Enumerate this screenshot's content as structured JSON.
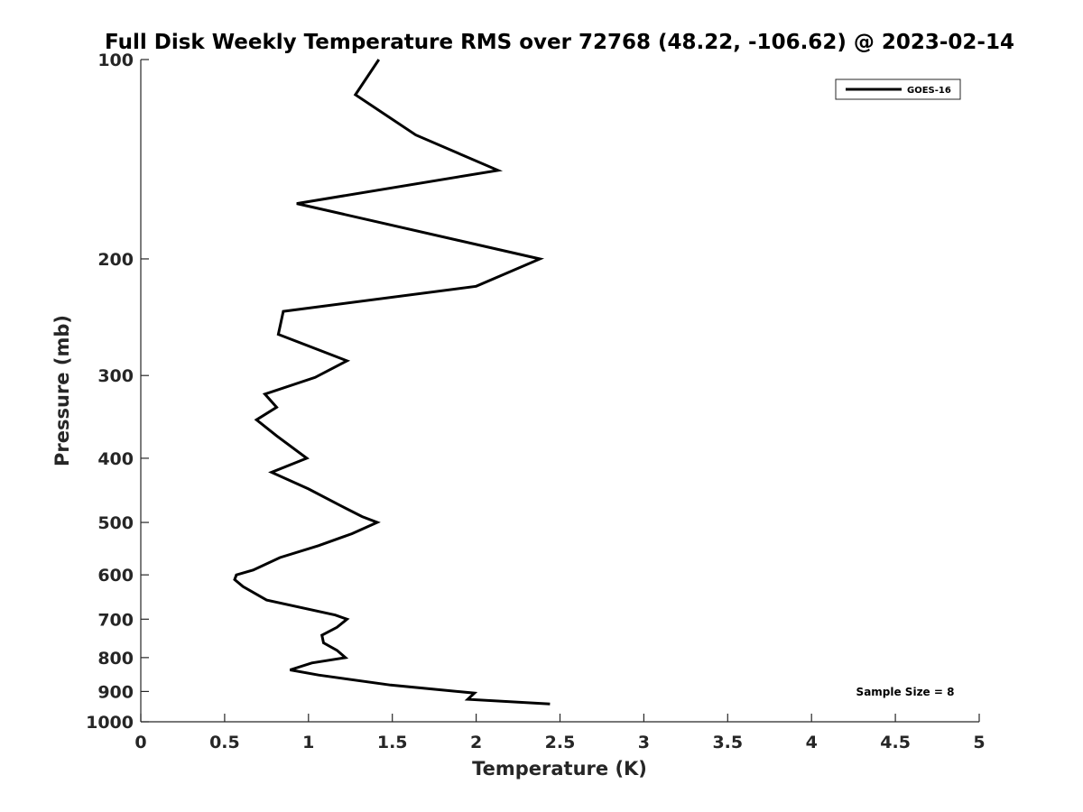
{
  "chart_data": {
    "type": "line",
    "title": "Full Disk Weekly Temperature RMS over 72768 (48.22, -106.62) @ 2023-02-14",
    "xlabel": "Temperature (K)",
    "ylabel": "Pressure (mb)",
    "xlim": [
      0,
      5
    ],
    "ylim": [
      100,
      1000
    ],
    "yscale": "log",
    "yreversed": true,
    "xticks": [
      0,
      0.5,
      1,
      1.5,
      2,
      2.5,
      3,
      3.5,
      4,
      4.5,
      5
    ],
    "xtick_labels": [
      "0",
      "0.5",
      "1",
      "1.5",
      "2",
      "2.5",
      "3",
      "3.5",
      "4",
      "4.5",
      "5"
    ],
    "yticks": [
      100,
      200,
      300,
      400,
      500,
      600,
      700,
      800,
      900,
      1000
    ],
    "ytick_labels": [
      "100",
      "200",
      "300",
      "400",
      "500",
      "600",
      "700",
      "800",
      "900",
      "1000"
    ],
    "grid": false,
    "legend_position": "top-right",
    "series": [
      {
        "name": "GOES-16",
        "color": "#000000",
        "x": [
          1.42,
          1.28,
          1.64,
          2.13,
          0.93,
          2.38,
          2.0,
          0.85,
          0.82,
          1.23,
          1.04,
          0.74,
          0.81,
          0.69,
          0.81,
          0.99,
          0.78,
          1.0,
          1.18,
          1.32,
          1.41,
          1.26,
          1.06,
          0.83,
          0.67,
          0.57,
          0.56,
          0.61,
          0.75,
          1.16,
          1.23,
          1.17,
          1.08,
          1.09,
          1.17,
          1.22,
          1.02,
          0.89,
          1.06,
          1.49,
          1.99,
          1.95,
          2.44
        ],
        "y": [
          100,
          113,
          130,
          147,
          165,
          200,
          220,
          240,
          260,
          285,
          302,
          320,
          335,
          350,
          370,
          400,
          420,
          445,
          470,
          490,
          500,
          520,
          542,
          565,
          590,
          600,
          610,
          625,
          655,
          690,
          700,
          720,
          740,
          760,
          780,
          800,
          815,
          835,
          850,
          880,
          905,
          925,
          940
        ]
      }
    ],
    "annotation": "Sample Size = 8"
  }
}
